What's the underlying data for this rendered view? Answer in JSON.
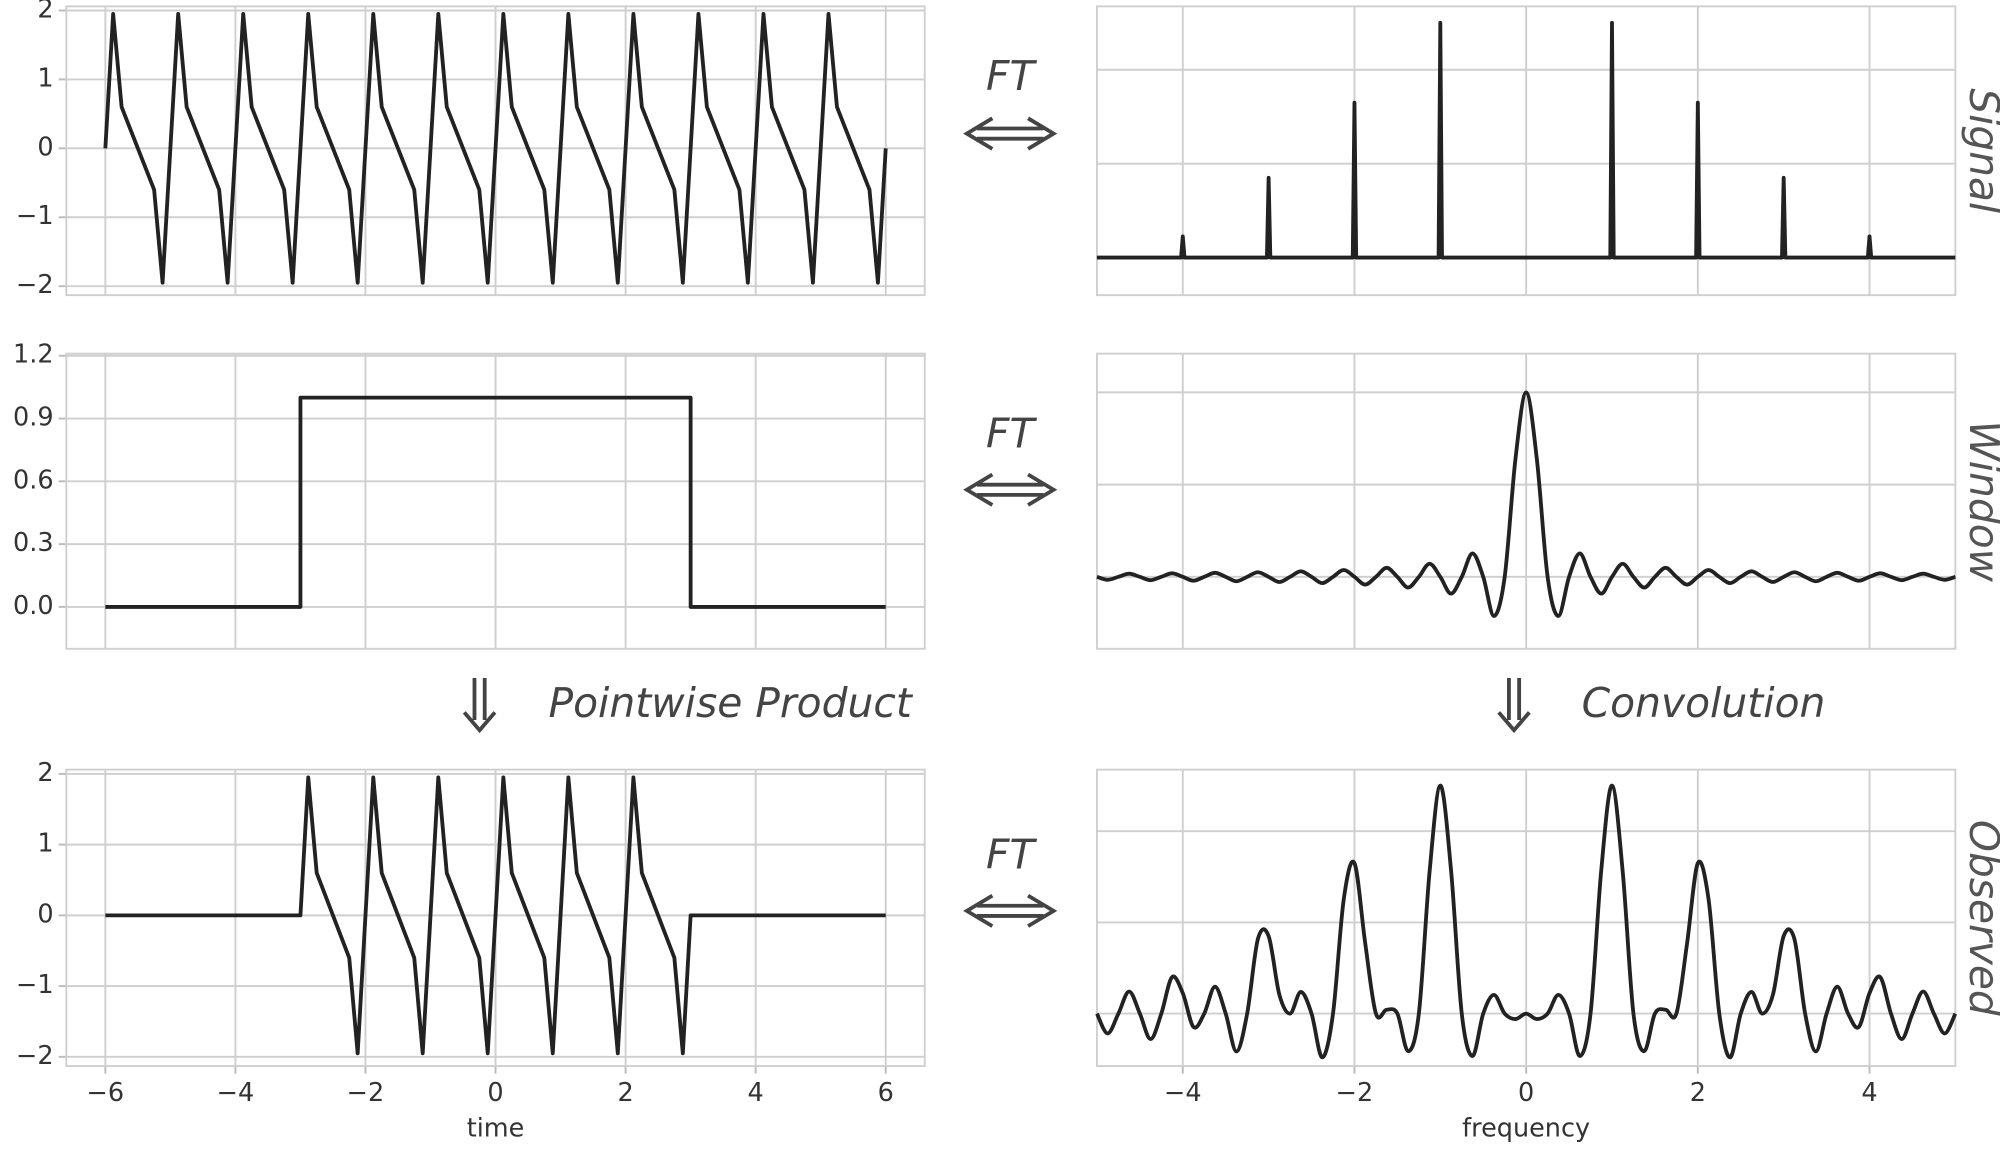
{
  "chart_data": [
    {
      "type": "line",
      "grid": true,
      "color": "#222222",
      "x": [
        -6,
        -5.88,
        -5.75,
        -5.25,
        -5.12,
        -5,
        -4.88,
        -4.75,
        -4.25,
        -4.12,
        -4,
        -3.88,
        -3.75,
        -3.25,
        -3.12,
        -3,
        -2.88,
        -2.75,
        -2.25,
        -2.12,
        -2,
        -1.88,
        -1.75,
        -1.25,
        -1.12,
        -1,
        -0.88,
        -0.75,
        -0.25,
        -0.12,
        0,
        0.12,
        0.25,
        0.75,
        0.88,
        1,
        1.12,
        1.25,
        1.75,
        1.88,
        2,
        2.12,
        2.25,
        2.75,
        2.88,
        3,
        3.12,
        3.25,
        3.75,
        3.88,
        4,
        4.12,
        4.25,
        4.75,
        4.88,
        5,
        5.12,
        5.25,
        5.75,
        5.88,
        6
      ],
      "values": [
        0,
        1.95,
        0.6,
        -0.6,
        -1.95,
        0,
        1.95,
        0.6,
        -0.6,
        -1.95,
        0,
        1.95,
        0.6,
        -0.6,
        -1.95,
        0,
        1.95,
        0.6,
        -0.6,
        -1.95,
        0,
        1.95,
        0.6,
        -0.6,
        -1.95,
        0,
        1.95,
        0.6,
        -0.6,
        -1.95,
        0,
        1.95,
        0.6,
        -0.6,
        -1.95,
        0,
        1.95,
        0.6,
        -0.6,
        -1.95,
        0,
        1.95,
        0.6,
        -0.6,
        -1.95,
        0,
        1.95,
        0.6,
        -0.6,
        -1.95,
        0,
        1.95,
        0.6,
        -0.6,
        -1.95,
        0,
        1.95,
        0.6,
        -0.6,
        -1.95,
        0
      ],
      "xlim": [
        -6.6,
        6.6
      ],
      "xticks": [
        -6,
        -4,
        -2,
        0,
        2,
        4,
        6
      ],
      "ylim": [
        -2.13,
        2.06
      ],
      "yticks": [
        {
          "value": -2,
          "label": "−2"
        },
        {
          "value": -1,
          "label": "−1"
        },
        0,
        1,
        2
      ]
    },
    {
      "type": "line",
      "grid": true,
      "color": "#222222",
      "row_label": "Signal",
      "x": [
        -5,
        -4.02,
        -4,
        -3.98,
        -3.02,
        -3,
        -2.98,
        -2.02,
        -2,
        -1.98,
        -1.02,
        -1,
        -0.98,
        0.98,
        1,
        1.02,
        1.98,
        2,
        2.02,
        2.98,
        3,
        3.02,
        3.98,
        4,
        4.02,
        5
      ],
      "values": [
        0,
        0,
        0.09,
        0,
        0,
        0.34,
        0,
        0,
        0.66,
        0,
        0,
        1,
        0,
        0,
        1,
        0,
        0,
        0.66,
        0,
        0,
        0.34,
        0,
        0,
        0.09,
        0,
        0
      ],
      "xlim": [
        -5,
        5
      ],
      "xticks": [
        -4,
        -2,
        0,
        2,
        4
      ],
      "ylim": [
        -0.16,
        1.07
      ],
      "yticks": [
        0,
        0.4,
        0.8
      ]
    },
    {
      "type": "line",
      "grid": true,
      "color": "#222222",
      "x": [
        -6,
        -3,
        -3,
        3,
        3,
        6
      ],
      "values": [
        0,
        0,
        1,
        1,
        0,
        0
      ],
      "xlim": [
        -6.6,
        6.6
      ],
      "xticks": [
        -6,
        -4,
        -2,
        0,
        2,
        4,
        6
      ],
      "ylim": [
        -0.2,
        1.21
      ],
      "yticks": [
        {
          "value": 0,
          "label": "0.0"
        },
        0.3,
        0.6,
        0.9,
        1.2
      ]
    },
    {
      "type": "line",
      "grid": true,
      "color": "#222222",
      "row_label": "Window",
      "x": [
        -5,
        -4.875,
        -4.75,
        -4.625,
        -4.5,
        -4.375,
        -4.25,
        -4.125,
        -4,
        -3.875,
        -3.75,
        -3.625,
        -3.5,
        -3.375,
        -3.25,
        -3.125,
        -3,
        -2.875,
        -2.75,
        -2.625,
        -2.5,
        -2.375,
        -2.25,
        -2.125,
        -2,
        -1.875,
        -1.75,
        -1.625,
        -1.5,
        -1.375,
        -1.25,
        -1.125,
        -1,
        -0.875,
        -0.75,
        -0.625,
        -0.5,
        -0.375,
        -0.25,
        -0.125,
        0,
        0.125,
        0.25,
        0.375,
        0.5,
        0.625,
        0.75,
        0.875,
        1,
        1.125,
        1.25,
        1.375,
        1.5,
        1.625,
        1.75,
        1.875,
        2,
        2.125,
        2.25,
        2.375,
        2.5,
        2.625,
        2.75,
        2.875,
        3,
        3.125,
        3.25,
        3.375,
        3.5,
        3.625,
        3.75,
        3.875,
        4,
        4.125,
        4.25,
        4.375,
        4.5,
        4.625,
        4.75,
        4.875,
        5
      ],
      "values": [
        0,
        -0.016,
        0,
        0.017,
        0,
        -0.018,
        0,
        0.019,
        0,
        -0.021,
        0,
        0.022,
        0,
        -0.024,
        0,
        0.025,
        0,
        -0.028,
        0,
        0.03,
        0,
        -0.034,
        0,
        0.037,
        0,
        -0.042,
        0,
        0.049,
        0,
        -0.058,
        0,
        0.071,
        0,
        -0.091,
        0,
        0.127,
        0,
        -0.212,
        0,
        0.637,
        1,
        0.637,
        0,
        -0.212,
        0,
        0.127,
        0,
        -0.091,
        0,
        0.071,
        0,
        -0.058,
        0,
        0.049,
        0,
        -0.042,
        0,
        0.037,
        0,
        -0.034,
        0,
        0.03,
        0,
        -0.028,
        0,
        0.025,
        0,
        -0.024,
        0,
        0.022,
        0,
        -0.021,
        0,
        0.019,
        0,
        -0.018,
        0,
        0.017,
        0,
        -0.016,
        0
      ],
      "xlim": [
        -5,
        5
      ],
      "xticks": [
        -4,
        -2,
        0,
        2,
        4
      ],
      "ylim": [
        -0.39,
        1.21
      ],
      "yticks": [
        0,
        0.5,
        1
      ]
    },
    {
      "type": "line",
      "grid": true,
      "color": "#222222",
      "xlabel": "time",
      "x": [
        -6,
        -3,
        -2.88,
        -2.75,
        -2.25,
        -2.12,
        -2,
        -1.88,
        -1.75,
        -1.25,
        -1.12,
        -1,
        -0.88,
        -0.75,
        -0.25,
        -0.12,
        0,
        0.12,
        0.25,
        0.75,
        0.88,
        1,
        1.12,
        1.25,
        1.75,
        1.88,
        2,
        2.12,
        2.25,
        2.75,
        2.88,
        3,
        6
      ],
      "values": [
        0,
        0,
        1.95,
        0.6,
        -0.6,
        -1.95,
        0,
        1.95,
        0.6,
        -0.6,
        -1.95,
        0,
        1.95,
        0.6,
        -0.6,
        -1.95,
        0,
        1.95,
        0.6,
        -0.6,
        -1.95,
        0,
        1.95,
        0.6,
        -0.6,
        -1.95,
        0,
        1.95,
        0.6,
        -0.6,
        -1.95,
        0,
        0
      ],
      "xlim": [
        -6.6,
        6.6
      ],
      "xticks": [
        {
          "value": -6,
          "label": "−6"
        },
        {
          "value": -4,
          "label": "−4"
        },
        {
          "value": -2,
          "label": "−2"
        },
        0,
        2,
        4,
        6
      ],
      "ylim": [
        -2.13,
        2.06
      ],
      "yticks": [
        {
          "value": -2,
          "label": "−2"
        },
        {
          "value": -1,
          "label": "−1"
        },
        0,
        1,
        2
      ]
    },
    {
      "type": "line",
      "grid": true,
      "color": "#222222",
      "row_label": "Observed",
      "xlabel": "frequency",
      "x": [
        -5,
        -4.875,
        -4.75,
        -4.625,
        -4.5,
        -4.375,
        -4.25,
        -4.125,
        -4,
        -3.875,
        -3.75,
        -3.625,
        -3.5,
        -3.375,
        -3.25,
        -3.125,
        -3,
        -2.875,
        -2.75,
        -2.625,
        -2.5,
        -2.375,
        -2.25,
        -2.125,
        -2,
        -1.875,
        -1.75,
        -1.625,
        -1.5,
        -1.375,
        -1.25,
        -1.125,
        -1,
        -0.875,
        -0.75,
        -0.625,
        -0.5,
        -0.375,
        -0.25,
        -0.125,
        0,
        0.125,
        0.25,
        0.375,
        0.5,
        0.625,
        0.75,
        0.875,
        1,
        1.125,
        1.25,
        1.375,
        1.5,
        1.625,
        1.75,
        1.875,
        2,
        2.125,
        2.25,
        2.375,
        2.5,
        2.625,
        2.75,
        2.875,
        3,
        3.125,
        3.25,
        3.375,
        3.5,
        3.625,
        3.75,
        3.875,
        4,
        4.125,
        4.25,
        4.375,
        4.5,
        4.625,
        4.75,
        4.875,
        5
      ],
      "values": [
        0,
        -0.087,
        0,
        0.097,
        0,
        -0.112,
        0,
        0.16,
        0.09,
        -0.059,
        0,
        0.118,
        0,
        -0.166,
        0,
        0.327,
        0.34,
        0.083,
        0,
        0.095,
        0,
        -0.192,
        0,
        0.501,
        0.66,
        0.309,
        0,
        0.017,
        0,
        -0.165,
        0,
        0.622,
        1,
        0.629,
        0,
        -0.186,
        0,
        0.082,
        0,
        -0.024,
        0,
        -0.024,
        0,
        0.082,
        0,
        -0.186,
        0,
        0.629,
        1,
        0.622,
        0,
        -0.165,
        0,
        0.017,
        0,
        0.309,
        0.66,
        0.501,
        0,
        -0.192,
        0,
        0.095,
        0,
        0.083,
        0.34,
        0.327,
        0,
        -0.166,
        0,
        0.118,
        0,
        -0.059,
        0.09,
        0.16,
        0,
        -0.112,
        0,
        0.097,
        0,
        -0.087,
        0
      ],
      "xlim": [
        -5,
        5
      ],
      "xticks": [
        {
          "value": -4,
          "label": "−4"
        },
        {
          "value": -2,
          "label": "−2"
        },
        0,
        2,
        4
      ],
      "ylim": [
        -0.23,
        1.07
      ],
      "yticks": [
        0,
        0.4,
        0.8
      ]
    }
  ],
  "annotations": {
    "ft_labels": [
      "FT",
      "FT",
      "FT"
    ],
    "product": "Pointwise Product",
    "convolution": "Convolution"
  }
}
